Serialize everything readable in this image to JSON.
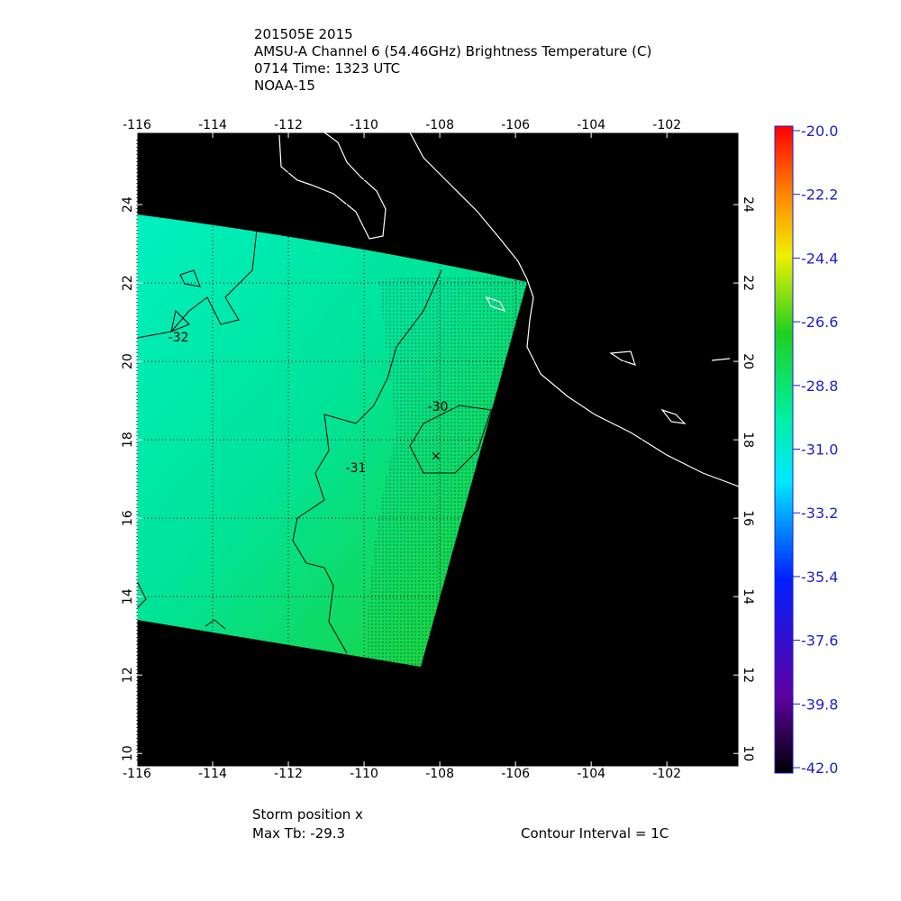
{
  "chart_data": {
    "type": "map",
    "title_lines": [
      "201505E 2015",
      "AMSU-A Channel 6 (54.46GHz) Brightness Temperature (C)",
      "0714 Time: 1323 UTC",
      "NOAA-15"
    ],
    "xlim": [
      -116,
      -100.1
    ],
    "ylim": [
      9.66,
      25.84
    ],
    "xticks": [
      -116,
      -114,
      -112,
      -110,
      -108,
      -106,
      -104,
      -102
    ],
    "yticks": [
      10,
      12,
      14,
      16,
      18,
      20,
      22,
      24
    ],
    "grid": true,
    "colorbar": {
      "lim": [
        -42,
        -20
      ],
      "ticks": [
        {
          "value": -20,
          "label": "-20.0"
        },
        {
          "value": -22.2,
          "label": "-22.2"
        },
        {
          "value": -24.4,
          "label": "-24.4"
        },
        {
          "value": -26.6,
          "label": "-26.6"
        },
        {
          "value": -28.8,
          "label": "-28.8"
        },
        {
          "value": -31,
          "label": "-31.0"
        },
        {
          "value": -33.2,
          "label": "-33.2"
        },
        {
          "value": -35.4,
          "label": "-35.4"
        },
        {
          "value": -37.6,
          "label": "-37.6"
        },
        {
          "value": -39.8,
          "label": "-39.8"
        },
        {
          "value": -42,
          "label": "-42.0"
        }
      ]
    },
    "contour_levels": [
      -32,
      -31,
      -30
    ],
    "storm_position": {
      "lon": -108.1,
      "lat": 17.6
    },
    "storm_label": "Storm position x",
    "max_tb": "Max Tb: -29.3",
    "contour_interval": "Contour Interval = 1C"
  }
}
